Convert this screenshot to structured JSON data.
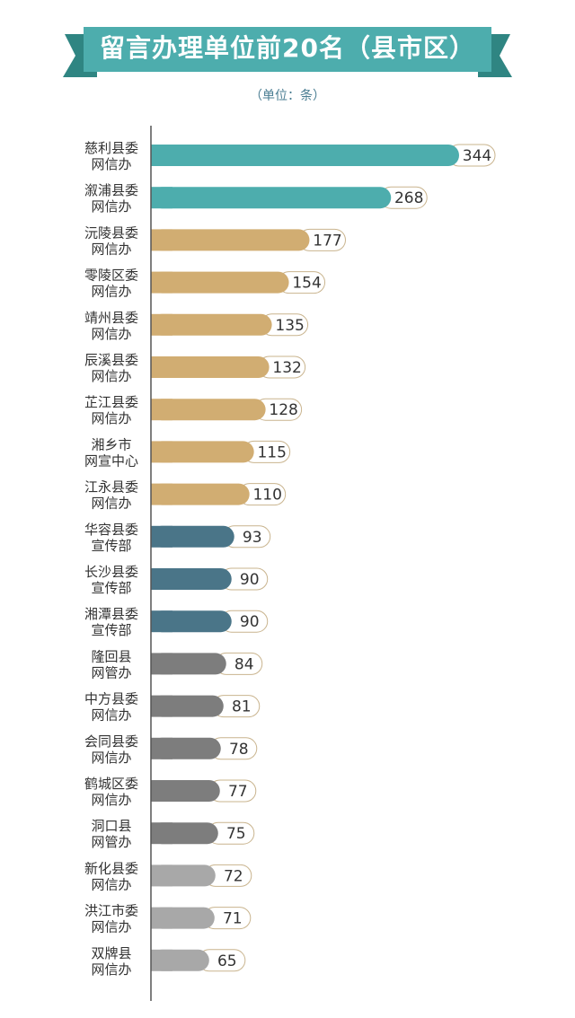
{
  "banner": {
    "title": "留言办理单位前20名（县市区）"
  },
  "unit_note": "（单位：条）",
  "chart_data": {
    "type": "bar",
    "orientation": "horizontal",
    "title": "留言办理单位前20名（县市区）",
    "subtitle": "（单位：条）",
    "categories": [
      [
        "慈利县委",
        "网信办"
      ],
      [
        "溆浦县委",
        "网信办"
      ],
      [
        "沅陵县委",
        "网信办"
      ],
      [
        "零陵区委",
        "网信办"
      ],
      [
        "靖州县委",
        "网信办"
      ],
      [
        "辰溪县委",
        "网信办"
      ],
      [
        "芷江县委",
        "网信办"
      ],
      [
        "湘乡市",
        "网宣中心"
      ],
      [
        "江永县委",
        "网信办"
      ],
      [
        "华容县委",
        "宣传部"
      ],
      [
        "长沙县委",
        "宣传部"
      ],
      [
        "湘潭县委",
        "宣传部"
      ],
      [
        "隆回县",
        "网管办"
      ],
      [
        "中方县委",
        "网信办"
      ],
      [
        "会同县委",
        "网信办"
      ],
      [
        "鹤城区委",
        "网信办"
      ],
      [
        "洞口县",
        "网管办"
      ],
      [
        "新化县委",
        "网信办"
      ],
      [
        "洪江市委",
        "网信办"
      ],
      [
        "双牌县",
        "网信办"
      ]
    ],
    "values": [
      344,
      268,
      177,
      154,
      135,
      132,
      128,
      115,
      110,
      93,
      90,
      90,
      84,
      81,
      78,
      77,
      75,
      72,
      71,
      65
    ],
    "colors": [
      "#4dadad",
      "#4dadad",
      "#d1ad72",
      "#d1ad72",
      "#d1ad72",
      "#d1ad72",
      "#d1ad72",
      "#d1ad72",
      "#d1ad72",
      "#4a7588",
      "#4a7588",
      "#4a7588",
      "#7d7d7d",
      "#7d7d7d",
      "#7d7d7d",
      "#7d7d7d",
      "#7d7d7d",
      "#a8a8a8",
      "#a8a8a8",
      "#a8a8a8"
    ],
    "xlim": [
      0,
      344
    ],
    "grid": false,
    "data_labels": true
  },
  "colors": {
    "banner_fill": "#4dadad",
    "banner_ribbon": "#2f8582",
    "axis": "#555555",
    "label_box_border": "#c9b48e"
  }
}
